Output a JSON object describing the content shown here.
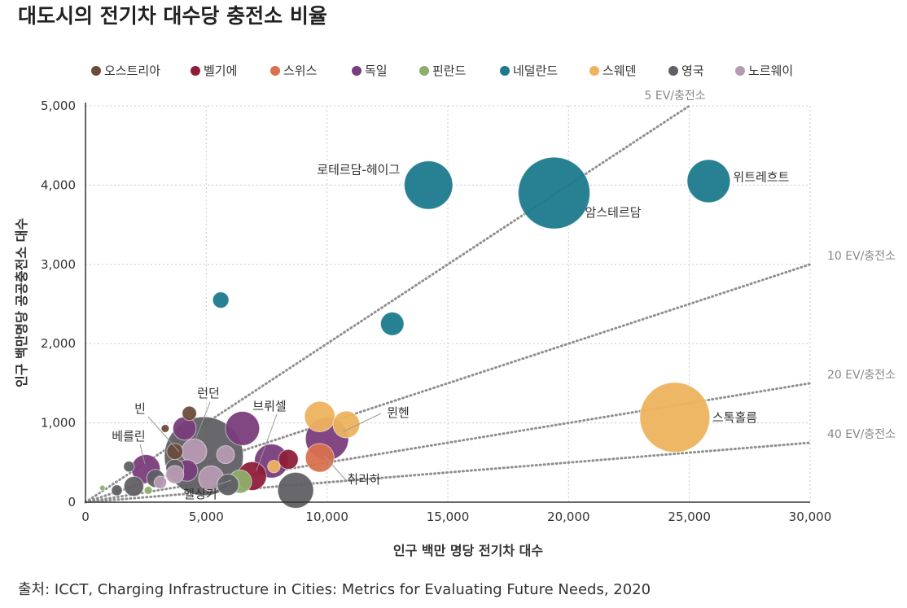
{
  "chart_data": {
    "type": "scatter",
    "title": "대도시의 전기차 대수당 충전소 비율",
    "xlabel": "인구 백만 명당 전기차 대수",
    "ylabel": "인구 백만명당 공공충전소 대수",
    "xlim": [
      0,
      30000
    ],
    "ylim": [
      0,
      5000
    ],
    "x_ticks": [
      "0",
      "5,000",
      "10,000",
      "15,000",
      "20,000",
      "25,000",
      "30,000"
    ],
    "y_ticks": [
      "0",
      "1,000",
      "2,000",
      "3,000",
      "4,000",
      "5,000"
    ],
    "grid": true,
    "legend_position": "top",
    "source": "출처: ICCT, Charging Infrastructure in Cities: Metrics for Evaluating Future Needs, 2020",
    "series": [
      {
        "name": "오스트리아",
        "color": "#6b4c3b"
      },
      {
        "name": "벨기에",
        "color": "#8e1f3a"
      },
      {
        "name": "스위스",
        "color": "#d9714e"
      },
      {
        "name": "독일",
        "color": "#7a3d7c"
      },
      {
        "name": "핀란드",
        "color": "#8fad6a"
      },
      {
        "name": "네덜란드",
        "color": "#1c7a8c"
      },
      {
        "name": "스웨덴",
        "color": "#edb35e"
      },
      {
        "name": "영국",
        "color": "#5f5f64"
      },
      {
        "name": "노르웨이",
        "color": "#b69ab2"
      }
    ],
    "reference_lines": [
      {
        "label": "5 EV/충전소",
        "ratio": 5
      },
      {
        "label": "10 EV/충전소",
        "ratio": 10
      },
      {
        "label": "20 EV/충전소",
        "ratio": 20
      },
      {
        "label": "40 EV/충전소",
        "ratio": 40
      }
    ],
    "points": [
      {
        "series": "네덜란드",
        "x": 14200,
        "y": 4000,
        "size": 1.35,
        "label": "로테르담-헤이그"
      },
      {
        "series": "네덜란드",
        "x": 19400,
        "y": 3900,
        "size": 2.0,
        "label": "암스테르담"
      },
      {
        "series": "네덜란드",
        "x": 25800,
        "y": 4050,
        "size": 1.2,
        "label": "위트레흐트"
      },
      {
        "series": "네덜란드",
        "x": 5600,
        "y": 2550,
        "size": 0.45
      },
      {
        "series": "네덜란드",
        "x": 12700,
        "y": 2250,
        "size": 0.65
      },
      {
        "series": "스웨덴",
        "x": 24400,
        "y": 1070,
        "size": 1.95,
        "label": "스톡홀름"
      },
      {
        "series": "스웨덴",
        "x": 9700,
        "y": 1080,
        "size": 0.85
      },
      {
        "series": "스웨덴",
        "x": 10800,
        "y": 980,
        "size": 0.75,
        "label": "뮌헨"
      },
      {
        "series": "스웨덴",
        "x": 7800,
        "y": 450,
        "size": 0.35
      },
      {
        "series": "독일",
        "x": 10000,
        "y": 800,
        "size": 1.2
      },
      {
        "series": "독일",
        "x": 6500,
        "y": 930,
        "size": 0.95
      },
      {
        "series": "독일",
        "x": 7700,
        "y": 520,
        "size": 0.95,
        "label": "브뤼셀"
      },
      {
        "series": "독일",
        "x": 2500,
        "y": 420,
        "size": 0.8,
        "label": "베를린"
      },
      {
        "series": "독일",
        "x": 4100,
        "y": 930,
        "size": 0.65
      },
      {
        "series": "독일",
        "x": 4200,
        "y": 400,
        "size": 0.6
      },
      {
        "series": "스위스",
        "x": 9700,
        "y": 560,
        "size": 0.8,
        "label": "취리하"
      },
      {
        "series": "벨기에",
        "x": 6900,
        "y": 330,
        "size": 0.8
      },
      {
        "series": "벨기에",
        "x": 8400,
        "y": 540,
        "size": 0.55
      },
      {
        "series": "오스트리아",
        "x": 4300,
        "y": 1120,
        "size": 0.4
      },
      {
        "series": "오스트리아",
        "x": 3300,
        "y": 930,
        "size": 0.22
      },
      {
        "series": "오스트리아",
        "x": 3700,
        "y": 640,
        "size": 0.45
      },
      {
        "series": "영국",
        "x": 4900,
        "y": 580,
        "size": 2.2,
        "label": "런던"
      },
      {
        "series": "영국",
        "x": 8700,
        "y": 150,
        "size": 1.0
      },
      {
        "series": "영국",
        "x": 5900,
        "y": 220,
        "size": 0.6,
        "label": "헬싱키"
      },
      {
        "series": "영국",
        "x": 2000,
        "y": 200,
        "size": 0.55
      },
      {
        "series": "영국",
        "x": 2900,
        "y": 300,
        "size": 0.5
      },
      {
        "series": "영국",
        "x": 3700,
        "y": 430,
        "size": 0.5
      },
      {
        "series": "영국",
        "x": 1800,
        "y": 450,
        "size": 0.3
      },
      {
        "series": "영국",
        "x": 1300,
        "y": 150,
        "size": 0.3
      },
      {
        "series": "핀란드",
        "x": 6400,
        "y": 260,
        "size": 0.65
      },
      {
        "series": "핀란드",
        "x": 2600,
        "y": 150,
        "size": 0.22
      },
      {
        "series": "핀란드",
        "x": 700,
        "y": 180,
        "size": 0.15
      },
      {
        "series": "노르웨이",
        "x": 4500,
        "y": 640,
        "size": 0.7
      },
      {
        "series": "노르웨이",
        "x": 5200,
        "y": 300,
        "size": 0.7
      },
      {
        "series": "노르웨이",
        "x": 3700,
        "y": 350,
        "size": 0.5
      },
      {
        "series": "노르웨이",
        "x": 5800,
        "y": 600,
        "size": 0.5
      },
      {
        "series": "노르웨이",
        "x": 3100,
        "y": 250,
        "size": 0.35
      }
    ],
    "callouts": [
      {
        "label": "빈"
      },
      {
        "label": "런던"
      },
      {
        "label": "베를린"
      },
      {
        "label": "브뤼셀"
      },
      {
        "label": "뮌헨"
      },
      {
        "label": "취리하"
      },
      {
        "label": "헬싱키"
      }
    ]
  }
}
